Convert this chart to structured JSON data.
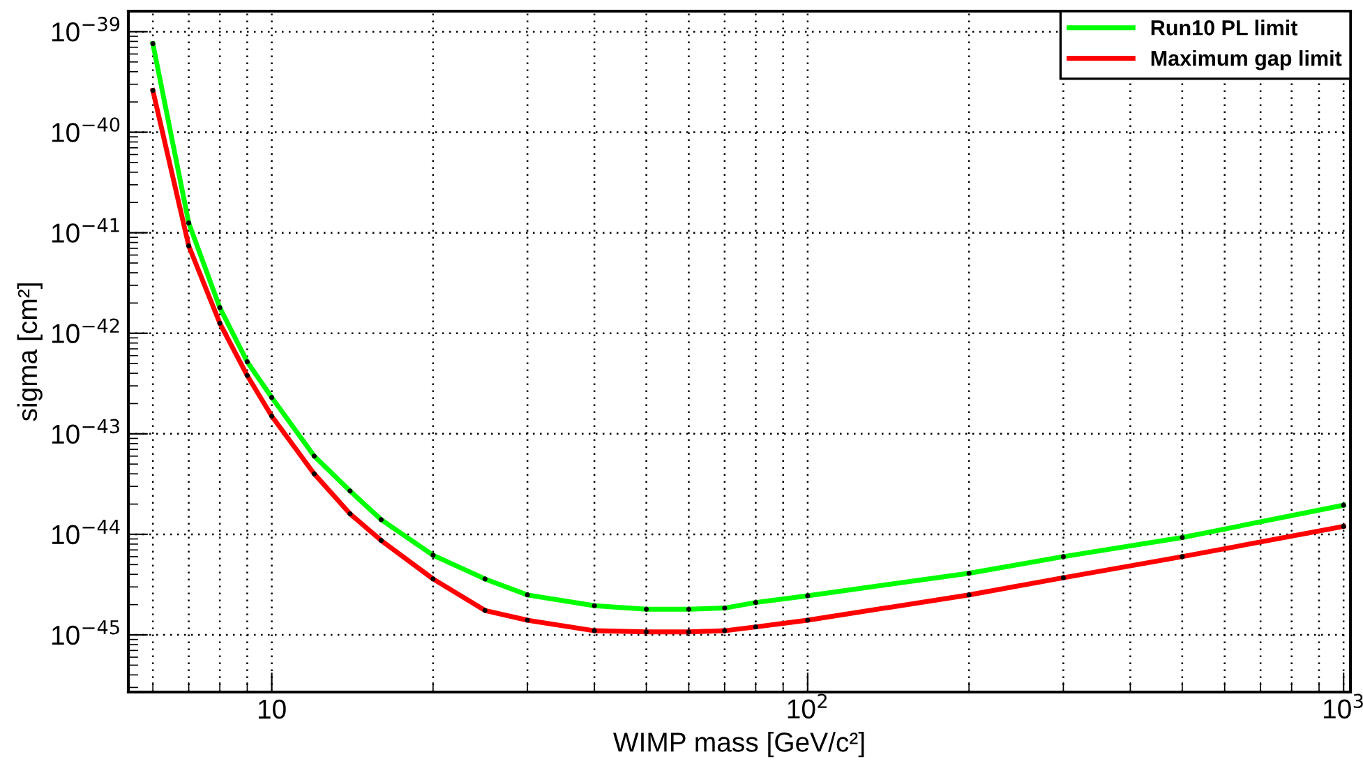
{
  "chart_data": {
    "type": "line",
    "xlabel": "WIMP mass [GeV/c²]",
    "ylabel": "sigma [cm²]",
    "log": "xy",
    "grid": true,
    "legend": "top right",
    "marker": "circle",
    "line_style": "solid",
    "xlim": [
      5.4,
      1030
    ],
    "ylim": [
      2.7e-46,
      1.6e-39
    ],
    "xticks": [
      {
        "value": 10,
        "label": "10"
      },
      {
        "value": 100,
        "label": "10$^{2}$"
      },
      {
        "value": 1000,
        "label": "10$^{3}$"
      }
    ],
    "yticks": [
      {
        "value": 1e-45,
        "label": "10$^{−45}$"
      },
      {
        "value": 1e-44,
        "label": "10$^{−44}$"
      },
      {
        "value": 1e-43,
        "label": "10$^{−43}$"
      },
      {
        "value": 1e-42,
        "label": "10$^{−42}$"
      },
      {
        "value": 1e-41,
        "label": "10$^{−41}$"
      },
      {
        "value": 1e-40,
        "label": "10$^{−40}$"
      },
      {
        "value": 1e-39,
        "label": "10$^{−39}$"
      }
    ],
    "x": [
      6,
      7,
      8,
      9,
      10,
      12,
      14,
      16,
      20,
      25,
      30,
      40,
      50,
      60,
      70,
      80,
      100,
      200,
      300,
      500,
      1000
    ],
    "series": [
      {
        "name": "Run10 PL limit",
        "color": "#00ff00",
        "values": [
          7.6e-40,
          1.25e-41,
          1.8e-42,
          5.2e-43,
          2.3e-43,
          6e-44,
          2.7e-44,
          1.4e-44,
          6.2e-45,
          3.6e-45,
          2.5e-45,
          1.95e-45,
          1.8e-45,
          1.8e-45,
          1.85e-45,
          2.1e-45,
          2.45e-45,
          4.1e-45,
          6e-45,
          9.3e-45,
          1.95e-44
        ]
      },
      {
        "name": "Maximum gap limit",
        "color": "#ff0000",
        "values": [
          2.6e-40,
          7.4e-42,
          1.26e-42,
          3.8e-43,
          1.5e-43,
          4e-44,
          1.6e-44,
          8.7e-45,
          3.6e-45,
          1.75e-45,
          1.4e-45,
          1.1e-45,
          1.07e-45,
          1.07e-45,
          1.1e-45,
          1.2e-45,
          1.4e-45,
          2.5e-45,
          3.7e-45,
          6e-45,
          1.2e-44
        ]
      }
    ]
  }
}
